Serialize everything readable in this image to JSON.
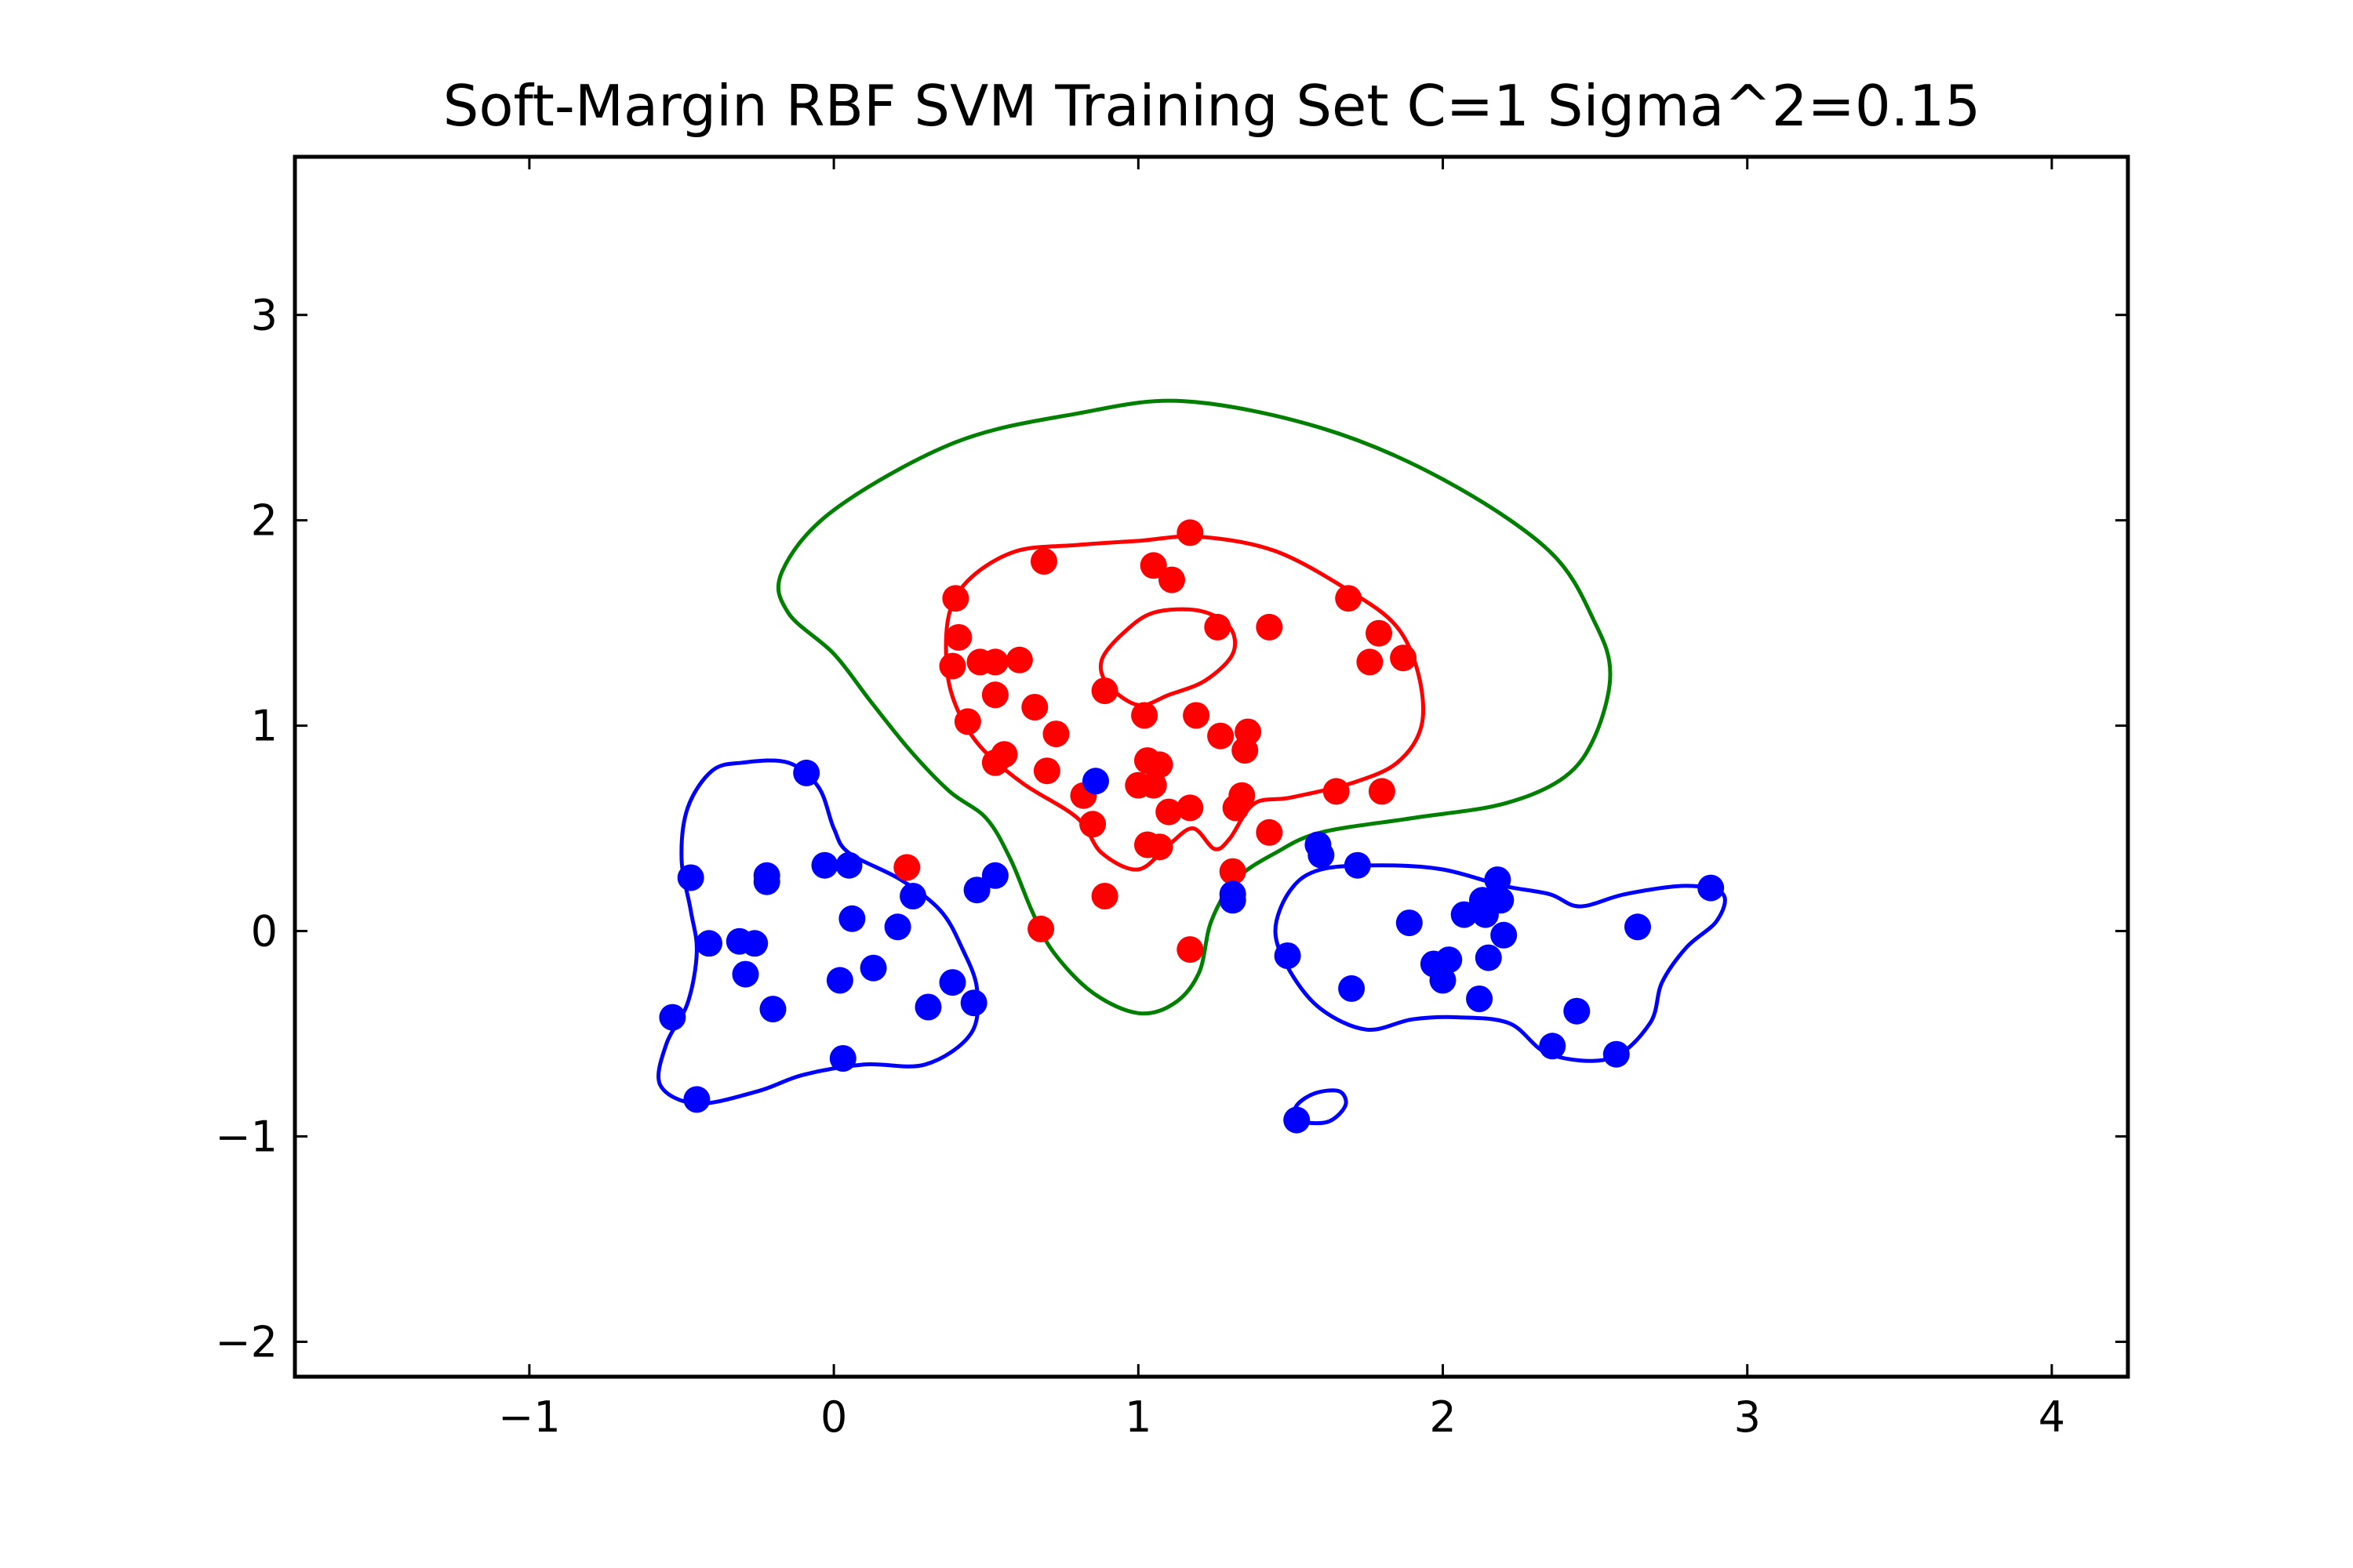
{
  "chart_data": {
    "type": "scatter",
    "title": "Soft-Margin RBF SVM Training Set C=1 Sigma^2=0.15",
    "xlabel": "",
    "ylabel": "",
    "xlim": [
      -1.77,
      4.25
    ],
    "ylim": [
      -2.17,
      3.77
    ],
    "xticks": [
      -1,
      0,
      1,
      2,
      3,
      4
    ],
    "yticks": [
      -2,
      -1,
      0,
      1,
      2,
      3
    ],
    "xtick_labels": [
      "−1",
      "0",
      "1",
      "2",
      "3",
      "4"
    ],
    "ytick_labels": [
      "−2",
      "−1",
      "0",
      "1",
      "2",
      "3"
    ],
    "grid": false,
    "colors": {
      "red": "#ff0000",
      "blue": "#0000ff",
      "green": "#007f00"
    },
    "series": [
      {
        "class": "red",
        "color": "#ff0000",
        "points": [
          [
            1.17,
            1.94
          ],
          [
            0.69,
            1.8
          ],
          [
            1.05,
            1.78
          ],
          [
            1.11,
            1.71
          ],
          [
            1.69,
            1.62
          ],
          [
            0.4,
            1.62
          ],
          [
            1.26,
            1.48
          ],
          [
            1.43,
            1.48
          ],
          [
            1.79,
            1.45
          ],
          [
            0.41,
            1.43
          ],
          [
            0.48,
            1.31
          ],
          [
            0.53,
            1.31
          ],
          [
            0.39,
            1.29
          ],
          [
            0.61,
            1.32
          ],
          [
            1.87,
            1.33
          ],
          [
            1.76,
            1.31
          ],
          [
            0.89,
            1.17
          ],
          [
            0.53,
            1.15
          ],
          [
            0.66,
            1.09
          ],
          [
            1.02,
            1.05
          ],
          [
            1.19,
            1.05
          ],
          [
            0.44,
            1.02
          ],
          [
            0.73,
            0.96
          ],
          [
            1.27,
            0.95
          ],
          [
            1.36,
            0.97
          ],
          [
            1.35,
            0.88
          ],
          [
            0.56,
            0.86
          ],
          [
            0.53,
            0.82
          ],
          [
            1.03,
            0.83
          ],
          [
            1.07,
            0.81
          ],
          [
            0.7,
            0.78
          ],
          [
            1.0,
            0.71
          ],
          [
            1.05,
            0.71
          ],
          [
            1.65,
            0.68
          ],
          [
            1.8,
            0.68
          ],
          [
            1.34,
            0.66
          ],
          [
            0.82,
            0.66
          ],
          [
            1.17,
            0.6
          ],
          [
            1.32,
            0.6
          ],
          [
            1.1,
            0.58
          ],
          [
            0.85,
            0.52
          ],
          [
            1.43,
            0.48
          ],
          [
            1.03,
            0.42
          ],
          [
            1.07,
            0.41
          ],
          [
            0.24,
            0.31
          ],
          [
            1.31,
            0.29
          ],
          [
            0.89,
            0.17
          ],
          [
            0.68,
            0.01
          ],
          [
            1.17,
            -0.09
          ]
        ]
      },
      {
        "class": "blue",
        "color": "#0000ff",
        "points": [
          [
            -0.09,
            0.77
          ],
          [
            0.86,
            0.73
          ],
          [
            -0.47,
            0.26
          ],
          [
            -0.22,
            0.27
          ],
          [
            -0.22,
            0.24
          ],
          [
            -0.03,
            0.32
          ],
          [
            0.05,
            0.32
          ],
          [
            0.53,
            0.27
          ],
          [
            0.47,
            0.2
          ],
          [
            0.26,
            0.17
          ],
          [
            0.06,
            0.06
          ],
          [
            0.21,
            0.02
          ],
          [
            -0.41,
            -0.06
          ],
          [
            -0.31,
            -0.05
          ],
          [
            -0.26,
            -0.06
          ],
          [
            -0.29,
            -0.21
          ],
          [
            0.13,
            -0.18
          ],
          [
            0.02,
            -0.24
          ],
          [
            0.39,
            -0.25
          ],
          [
            -0.2,
            -0.38
          ],
          [
            0.31,
            -0.37
          ],
          [
            0.46,
            -0.35
          ],
          [
            -0.53,
            -0.42
          ],
          [
            0.03,
            -0.62
          ],
          [
            -0.45,
            -0.82
          ],
          [
            1.59,
            0.42
          ],
          [
            1.6,
            0.37
          ],
          [
            1.72,
            0.32
          ],
          [
            1.31,
            0.18
          ],
          [
            1.31,
            0.15
          ],
          [
            2.18,
            0.25
          ],
          [
            2.88,
            0.21
          ],
          [
            2.13,
            0.15
          ],
          [
            2.19,
            0.15
          ],
          [
            2.07,
            0.08
          ],
          [
            2.14,
            0.08
          ],
          [
            1.89,
            0.04
          ],
          [
            2.64,
            0.02
          ],
          [
            2.2,
            -0.02
          ],
          [
            1.49,
            -0.12
          ],
          [
            2.15,
            -0.13
          ],
          [
            2.02,
            -0.14
          ],
          [
            1.97,
            -0.16
          ],
          [
            2.0,
            -0.24
          ],
          [
            1.7,
            -0.28
          ],
          [
            2.12,
            -0.33
          ],
          [
            2.44,
            -0.39
          ],
          [
            2.36,
            -0.56
          ],
          [
            2.57,
            -0.6
          ],
          [
            1.52,
            -0.92
          ]
        ]
      }
    ],
    "contours": [
      {
        "name": "",
        "color": "#007f00",
        "closed": true,
        "points": [
          [
            1.15,
            2.58
          ],
          [
            0.8,
            2.52
          ],
          [
            0.4,
            2.38
          ],
          [
            0.0,
            2.05
          ],
          [
            -0.17,
            1.75
          ],
          [
            -0.15,
            1.55
          ],
          [
            0.0,
            1.35
          ],
          [
            0.12,
            1.12
          ],
          [
            0.25,
            0.88
          ],
          [
            0.38,
            0.68
          ],
          [
            0.5,
            0.55
          ],
          [
            0.58,
            0.35
          ],
          [
            0.65,
            0.1
          ],
          [
            0.72,
            -0.1
          ],
          [
            0.85,
            -0.3
          ],
          [
            1.0,
            -0.4
          ],
          [
            1.12,
            -0.35
          ],
          [
            1.2,
            -0.2
          ],
          [
            1.24,
            0.05
          ],
          [
            1.32,
            0.25
          ],
          [
            1.45,
            0.38
          ],
          [
            1.6,
            0.48
          ],
          [
            1.9,
            0.55
          ],
          [
            2.2,
            0.62
          ],
          [
            2.4,
            0.75
          ],
          [
            2.5,
            0.95
          ],
          [
            2.55,
            1.25
          ],
          [
            2.5,
            1.5
          ],
          [
            2.35,
            1.85
          ],
          [
            2.0,
            2.2
          ],
          [
            1.6,
            2.45
          ],
          [
            1.15,
            2.58
          ]
        ]
      },
      {
        "name": "",
        "color": "#ff0000",
        "closed": true,
        "points": [
          [
            0.6,
            1.85
          ],
          [
            0.8,
            1.88
          ],
          [
            1.0,
            1.9
          ],
          [
            1.2,
            1.92
          ],
          [
            1.45,
            1.85
          ],
          [
            1.7,
            1.65
          ],
          [
            1.85,
            1.48
          ],
          [
            1.92,
            1.25
          ],
          [
            1.93,
            1.0
          ],
          [
            1.85,
            0.82
          ],
          [
            1.7,
            0.72
          ],
          [
            1.5,
            0.65
          ],
          [
            1.38,
            0.62
          ],
          [
            1.3,
            0.45
          ],
          [
            1.25,
            0.4
          ],
          [
            1.18,
            0.5
          ],
          [
            1.1,
            0.42
          ],
          [
            1.0,
            0.3
          ],
          [
            0.88,
            0.38
          ],
          [
            0.8,
            0.55
          ],
          [
            0.62,
            0.72
          ],
          [
            0.48,
            0.9
          ],
          [
            0.4,
            1.1
          ],
          [
            0.37,
            1.3
          ],
          [
            0.38,
            1.55
          ],
          [
            0.45,
            1.72
          ],
          [
            0.6,
            1.85
          ]
        ]
      },
      {
        "name": "",
        "color": "#ff0000",
        "closed": true,
        "points": [
          [
            0.95,
            1.45
          ],
          [
            1.05,
            1.55
          ],
          [
            1.2,
            1.56
          ],
          [
            1.3,
            1.48
          ],
          [
            1.31,
            1.35
          ],
          [
            1.22,
            1.22
          ],
          [
            1.1,
            1.15
          ],
          [
            1.0,
            1.1
          ],
          [
            0.9,
            1.2
          ],
          [
            0.88,
            1.32
          ],
          [
            0.95,
            1.45
          ]
        ]
      },
      {
        "name": "",
        "color": "#0000ff",
        "closed": true,
        "points": [
          [
            -0.3,
            0.82
          ],
          [
            -0.15,
            0.82
          ],
          [
            -0.05,
            0.7
          ],
          [
            0.0,
            0.5
          ],
          [
            0.05,
            0.38
          ],
          [
            0.22,
            0.25
          ],
          [
            0.35,
            0.1
          ],
          [
            0.42,
            -0.08
          ],
          [
            0.47,
            -0.28
          ],
          [
            0.45,
            -0.5
          ],
          [
            0.3,
            -0.65
          ],
          [
            0.1,
            -0.65
          ],
          [
            -0.1,
            -0.7
          ],
          [
            -0.25,
            -0.78
          ],
          [
            -0.45,
            -0.84
          ],
          [
            -0.57,
            -0.75
          ],
          [
            -0.55,
            -0.55
          ],
          [
            -0.48,
            -0.35
          ],
          [
            -0.45,
            -0.1
          ],
          [
            -0.47,
            0.1
          ],
          [
            -0.5,
            0.35
          ],
          [
            -0.48,
            0.6
          ],
          [
            -0.4,
            0.78
          ],
          [
            -0.3,
            0.82
          ]
        ]
      },
      {
        "name": "",
        "color": "#0000ff",
        "closed": true,
        "points": [
          [
            1.5,
            0.2
          ],
          [
            1.6,
            0.3
          ],
          [
            1.8,
            0.32
          ],
          [
            2.0,
            0.3
          ],
          [
            2.2,
            0.22
          ],
          [
            2.35,
            0.18
          ],
          [
            2.45,
            0.12
          ],
          [
            2.6,
            0.18
          ],
          [
            2.8,
            0.22
          ],
          [
            2.92,
            0.18
          ],
          [
            2.9,
            0.05
          ],
          [
            2.8,
            -0.08
          ],
          [
            2.72,
            -0.25
          ],
          [
            2.68,
            -0.45
          ],
          [
            2.55,
            -0.62
          ],
          [
            2.35,
            -0.6
          ],
          [
            2.22,
            -0.45
          ],
          [
            2.05,
            -0.42
          ],
          [
            1.9,
            -0.43
          ],
          [
            1.75,
            -0.48
          ],
          [
            1.6,
            -0.38
          ],
          [
            1.5,
            -0.2
          ],
          [
            1.45,
            0.0
          ],
          [
            1.5,
            0.2
          ]
        ]
      },
      {
        "name": "",
        "color": "#0000ff",
        "closed": true,
        "points": [
          [
            1.52,
            -0.92
          ],
          [
            1.62,
            -0.93
          ],
          [
            1.68,
            -0.85
          ],
          [
            1.66,
            -0.78
          ],
          [
            1.58,
            -0.79
          ],
          [
            1.52,
            -0.85
          ],
          [
            1.52,
            -0.92
          ]
        ]
      }
    ]
  }
}
